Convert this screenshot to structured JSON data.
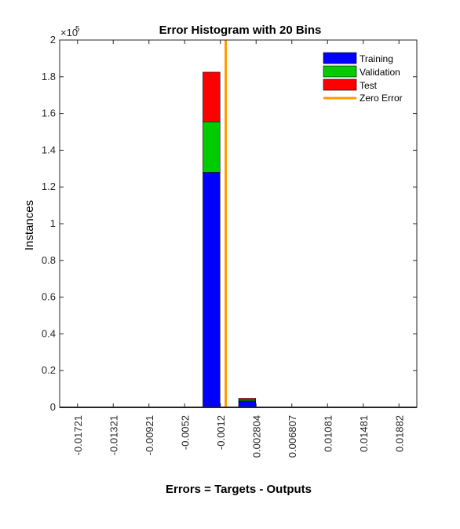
{
  "chart_data": {
    "type": "bar",
    "title": "Error Histogram with 20 Bins",
    "xlabel": "Errors = Targets - Outputs",
    "ylabel": "Instances",
    "y_exponent_label": "×10",
    "y_exponent_power": "5",
    "ylim": [
      0,
      200000
    ],
    "xlim": [
      0,
      20
    ],
    "y_ticks": [
      {
        "value": 0,
        "label": "0"
      },
      {
        "value": 20000,
        "label": "0.2"
      },
      {
        "value": 40000,
        "label": "0.4"
      },
      {
        "value": 60000,
        "label": "0.6"
      },
      {
        "value": 80000,
        "label": "0.8"
      },
      {
        "value": 100000,
        "label": "1"
      },
      {
        "value": 120000,
        "label": "1.2"
      },
      {
        "value": 140000,
        "label": "1.4"
      },
      {
        "value": 160000,
        "label": "1.6"
      },
      {
        "value": 180000,
        "label": "1.8"
      },
      {
        "value": 200000,
        "label": "2"
      }
    ],
    "x_ticks": [
      {
        "bin": 1,
        "label": "-0.01721"
      },
      {
        "bin": 3,
        "label": "-0.01321"
      },
      {
        "bin": 5,
        "label": "-0.00921"
      },
      {
        "bin": 7,
        "label": "-0.0052"
      },
      {
        "bin": 9,
        "label": "-0.0012"
      },
      {
        "bin": 11,
        "label": "0.002804"
      },
      {
        "bin": 13,
        "label": "0.006807"
      },
      {
        "bin": 15,
        "label": "0.01081"
      },
      {
        "bin": 17,
        "label": "0.01481"
      },
      {
        "bin": 19,
        "label": "0.01882"
      }
    ],
    "bins": 20,
    "series": [
      {
        "name": "Training",
        "color": "#0000ff",
        "values": [
          0,
          0,
          0,
          0,
          0,
          0,
          0,
          0,
          128000,
          0,
          3500,
          0,
          0,
          0,
          0,
          0,
          0,
          0,
          0,
          0
        ]
      },
      {
        "name": "Validation",
        "color": "#00cc00",
        "values": [
          0,
          0,
          0,
          0,
          0,
          0,
          0,
          0,
          27500,
          0,
          700,
          0,
          0,
          0,
          0,
          0,
          0,
          0,
          0,
          0
        ]
      },
      {
        "name": "Test",
        "color": "#ff0000",
        "values": [
          0,
          0,
          0,
          0,
          0,
          0,
          0,
          0,
          27000,
          0,
          700,
          0,
          0,
          0,
          0,
          0,
          0,
          0,
          0,
          0
        ]
      }
    ],
    "zero_error": {
      "name": "Zero Error",
      "bin_position": 9.3,
      "color": "#ff9900"
    },
    "legend_position": "top-right",
    "grid": false
  }
}
